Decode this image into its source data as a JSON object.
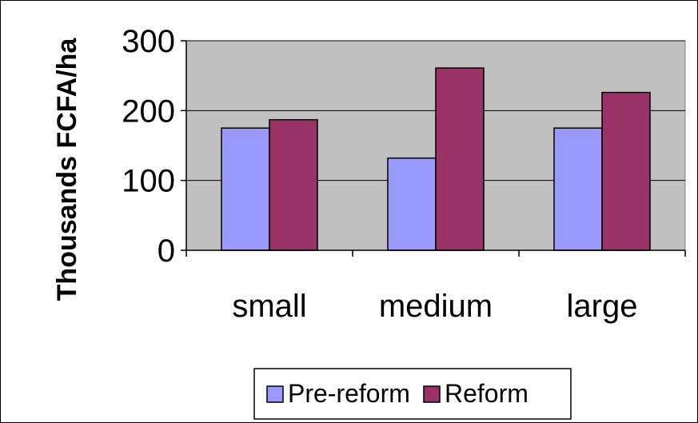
{
  "chart_data": {
    "type": "bar",
    "categories": [
      "small",
      "medium",
      "large"
    ],
    "series": [
      {
        "name": "Pre-reform",
        "values": [
          175,
          132,
          175
        ],
        "color": "#9999FF"
      },
      {
        "name": "Reform",
        "values": [
          187,
          261,
          226
        ],
        "color": "#993366"
      }
    ],
    "title": "",
    "xlabel": "",
    "ylabel": "Thousands FCFA/ha",
    "ylim": [
      0,
      300
    ],
    "yticks": [
      0,
      100,
      200,
      300
    ],
    "grid": true,
    "plot_background": "#C0C0C0",
    "legend_position": "bottom"
  }
}
